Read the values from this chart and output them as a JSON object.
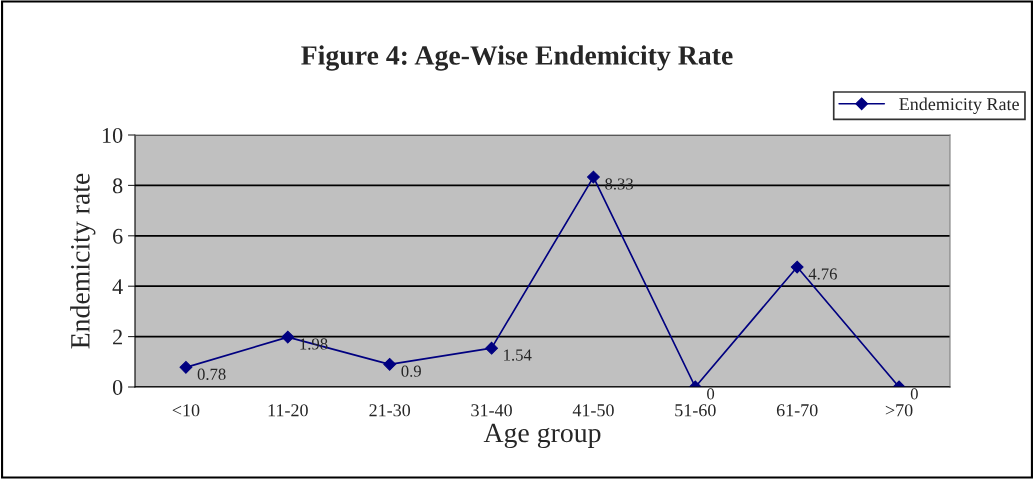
{
  "chart_data": {
    "type": "line",
    "title": "Figure 4: Age-Wise Endemicity Rate",
    "xlabel": "Age group",
    "ylabel": "Endemicity rate",
    "categories": [
      "<10",
      "11-20",
      "21-30",
      "31-40",
      "41-50",
      "51-60",
      "61-70",
      ">70"
    ],
    "series": [
      {
        "name": "Endemicity Rate",
        "color": "#000080",
        "values": [
          0.78,
          1.98,
          0.9,
          1.54,
          8.33,
          0,
          4.76,
          0
        ]
      }
    ],
    "ylim": [
      0,
      10
    ],
    "yticks": [
      0,
      2,
      4,
      6,
      8,
      10
    ],
    "grid": "y",
    "legend": "top right",
    "marker": "diamond",
    "line_style": "solid",
    "data_labels": true
  }
}
